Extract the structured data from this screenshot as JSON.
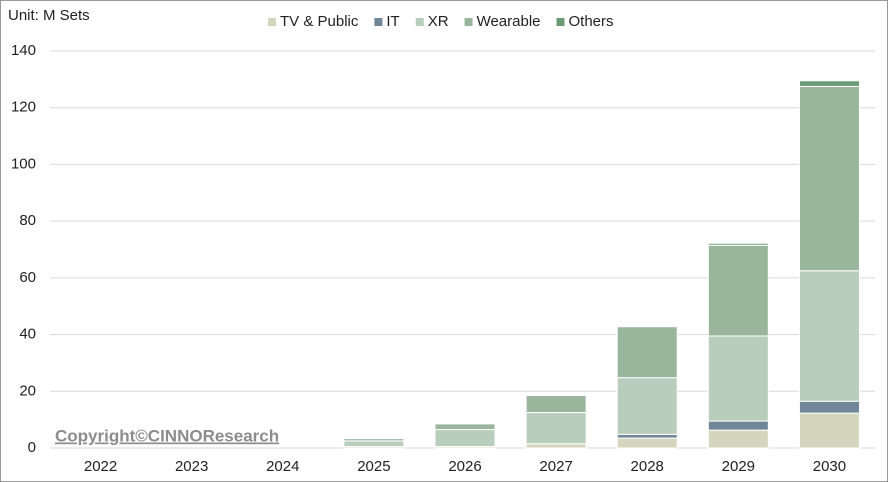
{
  "chart_data": {
    "type": "stacked-bar",
    "unit_label": "Unit: M Sets",
    "watermark": "Copyright©CINNOResearch",
    "categories": [
      "2022",
      "2023",
      "2024",
      "2025",
      "2026",
      "2027",
      "2028",
      "2029",
      "2030"
    ],
    "series": [
      {
        "name": "TV & Public",
        "color": "#d3d6bd",
        "values": [
          0,
          0,
          0,
          0.5,
          0.5,
          1.5,
          3.5,
          6.3,
          12.3
        ]
      },
      {
        "name": "IT",
        "color": "#6f8796",
        "values": [
          0,
          0,
          0,
          0,
          0,
          0,
          1.3,
          3.2,
          4.2
        ]
      },
      {
        "name": "XR",
        "color": "#b9cdbd",
        "values": [
          0,
          0,
          0,
          2,
          6,
          11,
          20,
          30,
          46
        ]
      },
      {
        "name": "Wearable",
        "color": "#99b59c",
        "values": [
          0,
          0,
          0,
          0.8,
          2,
          6,
          18,
          32,
          65
        ]
      },
      {
        "name": "Others",
        "color": "#6c9c75",
        "values": [
          0,
          0,
          0,
          0,
          0,
          0,
          0.3,
          0.7,
          2
        ]
      }
    ],
    "ylim": [
      0,
      140
    ],
    "yticks": [
      0,
      20,
      40,
      60,
      80,
      100,
      120,
      140
    ],
    "grid": true
  }
}
